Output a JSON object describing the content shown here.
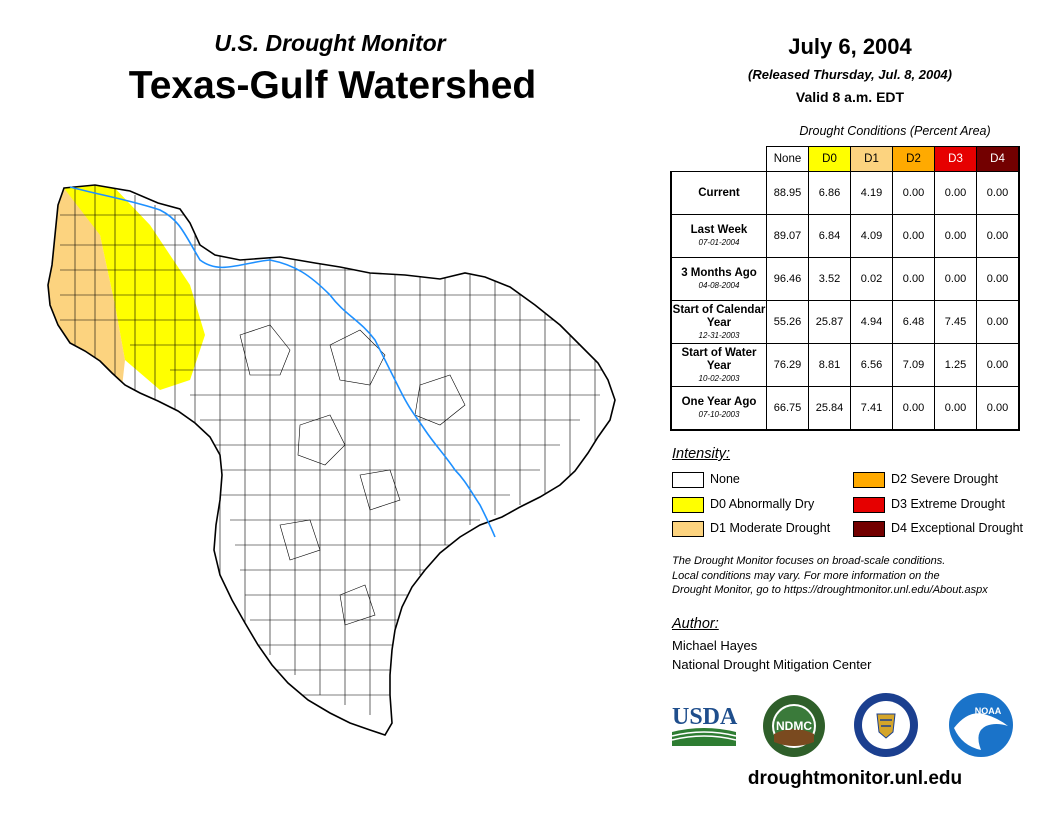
{
  "header": {
    "subtitle": "U.S. Drought Monitor",
    "title": "Texas-Gulf Watershed",
    "date": "July 6, 2004",
    "released": "(Released Thursday, Jul. 8, 2004)",
    "valid": "Valid 8 a.m. EDT"
  },
  "table": {
    "caption": "Drought Conditions (Percent Area)",
    "columns": [
      "None",
      "D0",
      "D1",
      "D2",
      "D3",
      "D4"
    ],
    "column_colors": [
      "#ffffff",
      "#ffff00",
      "#fcd37f",
      "#ffaa00",
      "#e60000",
      "#730000"
    ],
    "rows": [
      {
        "label": "Current",
        "date": "",
        "values": [
          "88.95",
          "6.86",
          "4.19",
          "0.00",
          "0.00",
          "0.00"
        ]
      },
      {
        "label": "Last Week",
        "date": "07-01-2004",
        "values": [
          "89.07",
          "6.84",
          "4.09",
          "0.00",
          "0.00",
          "0.00"
        ]
      },
      {
        "label": "3 Months Ago",
        "date": "04-08-2004",
        "values": [
          "96.46",
          "3.52",
          "0.02",
          "0.00",
          "0.00",
          "0.00"
        ]
      },
      {
        "label": "Start of Calendar Year",
        "date": "12-31-2003",
        "values": [
          "55.26",
          "25.87",
          "4.94",
          "6.48",
          "7.45",
          "0.00"
        ]
      },
      {
        "label": "Start of Water Year",
        "date": "10-02-2003",
        "values": [
          "76.29",
          "8.81",
          "6.56",
          "7.09",
          "1.25",
          "0.00"
        ]
      },
      {
        "label": "One Year Ago",
        "date": "07-10-2003",
        "values": [
          "66.75",
          "25.84",
          "7.41",
          "0.00",
          "0.00",
          "0.00"
        ]
      }
    ]
  },
  "legend": {
    "title": "Intensity:",
    "items": [
      {
        "label": "None",
        "color": "#ffffff"
      },
      {
        "label": "D0 Abnormally Dry",
        "color": "#ffff00"
      },
      {
        "label": "D1 Moderate Drought",
        "color": "#fcd37f"
      },
      {
        "label": "D2 Severe Drought",
        "color": "#ffaa00"
      },
      {
        "label": "D3 Extreme Drought",
        "color": "#e60000"
      },
      {
        "label": "D4 Exceptional Drought",
        "color": "#730000"
      }
    ]
  },
  "note": {
    "line1": "The Drought Monitor focuses on broad-scale conditions.",
    "line2": "Local conditions may vary. For more information on the",
    "line3": "Drought Monitor, go to https://droughtmonitor.unl.edu/About.aspx"
  },
  "author": {
    "title": "Author:",
    "name": "Michael Hayes",
    "org": "National Drought Mitigation Center"
  },
  "logos": {
    "usda": "USDA",
    "ndmc": "NDMC",
    "noaa": "NOAA"
  },
  "footer": {
    "url": "droughtmonitor.unl.edu"
  },
  "colors": {
    "river": "#1e90ff",
    "usda_blue": "#1f4e8c",
    "usda_green": "#2e7d32",
    "ndmc_green": "#2f5f2a",
    "commerce_blue": "#1b3f8f",
    "noaa_blue": "#1a73c9"
  }
}
